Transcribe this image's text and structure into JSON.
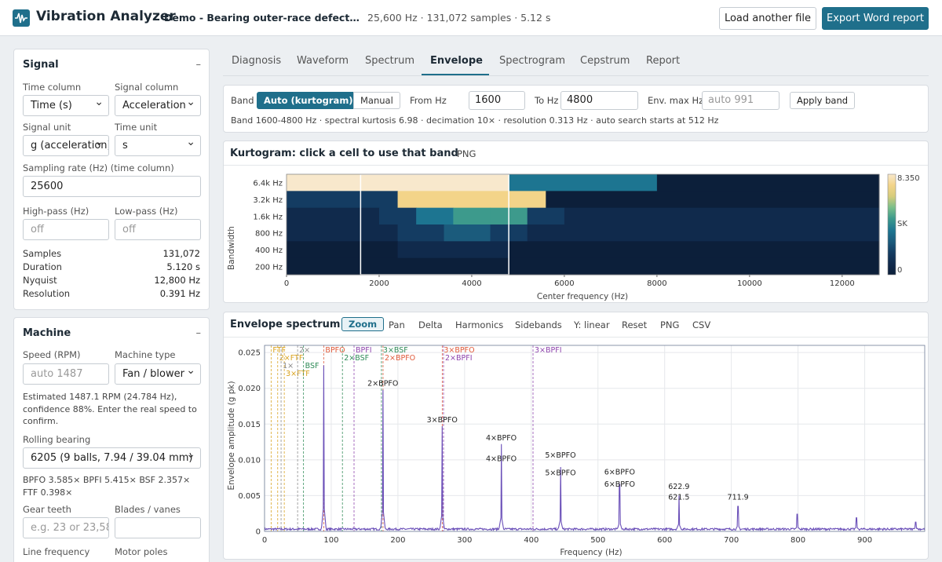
{
  "header": {
    "app_title": "Vibration Analyzer",
    "file_title": "Demo - Bearing outer-race defect (synthetic)",
    "file_meta": "25,600 Hz · 131,072 samples · 5.12 s",
    "load_button": "Load another file",
    "export_button": "Export Word report"
  },
  "signal": {
    "title": "Signal",
    "collapse": "–",
    "time_column_label": "Time column",
    "time_column_value": "Time (s)",
    "signal_column_label": "Signal column",
    "signal_column_value": "Acceleration",
    "signal_unit_label": "Signal unit",
    "signal_unit_value": "g (acceleration)",
    "time_unit_label": "Time unit",
    "time_unit_value": "s",
    "sampling_label": "Sampling rate (Hz) (time column)",
    "sampling_value": "25600",
    "highpass_label": "High-pass (Hz)",
    "highpass_placeholder": "off",
    "lowpass_label": "Low-pass (Hz)",
    "lowpass_placeholder": "off",
    "stats": [
      {
        "key": "Samples",
        "value": "131,072"
      },
      {
        "key": "Duration",
        "value": "5.120 s"
      },
      {
        "key": "Nyquist",
        "value": "12,800 Hz"
      },
      {
        "key": "Resolution",
        "value": "0.391 Hz"
      }
    ]
  },
  "machine": {
    "title": "Machine",
    "collapse": "–",
    "speed_label": "Speed (RPM)",
    "speed_placeholder": "auto 1487",
    "type_label": "Machine type",
    "type_value": "Fan / blower",
    "estimate_note": "Estimated 1487.1 RPM (24.784 Hz), confidence 88%. Enter the real speed to confirm.",
    "bearing_label": "Rolling bearing",
    "bearing_value": "6205 (9 balls, 7.94 / 39.04 mm)",
    "bearing_note": "BPFO 3.585× BPFI 5.415× BSF 2.357× FTF 0.398×",
    "gear_label": "Gear teeth",
    "gear_placeholder": "e.g. 23 or 23,58",
    "blades_label": "Blades / vanes",
    "line_label": "Line frequency",
    "poles_label": "Motor poles"
  },
  "tabs": [
    "Diagnosis",
    "Waveform",
    "Spectrum",
    "Envelope",
    "Spectrogram",
    "Cepstrum",
    "Report"
  ],
  "active_tab": "Envelope",
  "band": {
    "label": "Band",
    "auto": "Auto (kurtogram)",
    "manual": "Manual",
    "from_label": "From Hz",
    "from_value": "1600",
    "to_label": "To Hz",
    "to_value": "4800",
    "env_label": "Env. max Hz",
    "env_placeholder": "auto 991",
    "apply": "Apply band",
    "summary": "Band 1600-4800 Hz · spectral kurtosis 6.98 · decimation 10× · resolution 0.313 Hz · auto search starts at 512 Hz"
  },
  "kurtogram": {
    "title": "Kurtogram: click a cell to use that band",
    "png": "PNG",
    "ylabel": "Bandwidth",
    "xlabel": "Center frequency (Hz)",
    "rows": [
      "6.4k Hz",
      "3.2k Hz",
      "1.6k Hz",
      "800 Hz",
      "400 Hz",
      "200 Hz"
    ],
    "xticks": [
      "0",
      "2000",
      "4000",
      "6000",
      "8000",
      "10000",
      "12000"
    ],
    "colorbar_max": "8.350",
    "colorbar_mid": "SK",
    "colorbar_min": "0",
    "selected_band_hz": [
      1600,
      4800
    ]
  },
  "envelope": {
    "title": "Envelope spectrum",
    "tools": [
      "Zoom",
      "Pan",
      "Delta",
      "Harmonics",
      "Sidebands",
      "Y: linear",
      "Reset",
      "PNG",
      "CSV"
    ],
    "active_tool": "Zoom"
  },
  "chart_data": {
    "type": "line",
    "xlabel": "Frequency (Hz)",
    "ylabel": "Envelope amplitude (g pk)",
    "xlim": [
      0,
      990
    ],
    "ylim": [
      0,
      0.026
    ],
    "xticks": [
      "0",
      "100",
      "200",
      "300",
      "400",
      "500",
      "600",
      "700",
      "800",
      "900"
    ],
    "yticks": [
      "0",
      "0.005",
      "0.010",
      "0.015",
      "0.020",
      "0.025"
    ],
    "grid": true,
    "series": [
      {
        "name": "",
        "color": "#6a4fb8",
        "peaks": [
          {
            "x": 88.8,
            "y": 0.0232
          },
          {
            "x": 177.5,
            "y": 0.0198
          },
          {
            "x": 266.3,
            "y": 0.0147
          },
          {
            "x": 355.0,
            "y": 0.0122
          },
          {
            "x": 443.8,
            "y": 0.009
          },
          {
            "x": 532.5,
            "y": 0.0066
          },
          {
            "x": 621.3,
            "y": 0.005
          },
          {
            "x": 710.0,
            "y": 0.0035
          },
          {
            "x": 798.8,
            "y": 0.0024
          },
          {
            "x": 887.5,
            "y": 0.0019
          },
          {
            "x": 976.3,
            "y": 0.0013
          }
        ]
      }
    ],
    "markers": [
      {
        "label": "FTF",
        "x": 9.9,
        "color": "#d9a21c",
        "row": 0
      },
      {
        "label": "2×FTF",
        "x": 19.7,
        "color": "#d9a21c",
        "row": 1
      },
      {
        "label": "3×FTF",
        "x": 29.6,
        "color": "#d9a21c",
        "row": 3
      },
      {
        "label": "1×",
        "x": 24.8,
        "color": "#888888",
        "row": 2
      },
      {
        "label": "2×",
        "x": 49.6,
        "color": "#888888",
        "row": 0
      },
      {
        "label": "BSF",
        "x": 58.4,
        "color": "#2e8b57",
        "row": 2
      },
      {
        "label": "2×BSF",
        "x": 116.8,
        "color": "#2e8b57",
        "row": 1
      },
      {
        "label": "3×BSF",
        "x": 175.3,
        "color": "#2e8b57",
        "row": 0
      },
      {
        "label": "BPFO",
        "x": 88.8,
        "color": "#e05a3a",
        "row": 0
      },
      {
        "label": "2×BPFO",
        "x": 177.7,
        "color": "#e05a3a",
        "row": 1
      },
      {
        "label": "3×BPFO",
        "x": 266.5,
        "color": "#e05a3a",
        "row": 0
      },
      {
        "label": "BPFI",
        "x": 134.2,
        "color": "#8e44ad",
        "row": 0
      },
      {
        "label": "2×BPFI",
        "x": 268.4,
        "color": "#8e44ad",
        "row": 1
      },
      {
        "label": "3×BPFI",
        "x": 402.6,
        "color": "#8e44ad",
        "row": 0
      }
    ],
    "annotations": [
      {
        "text": "2×BPFO",
        "x": 177.5,
        "y": 0.0199
      },
      {
        "text": "3×BPFO",
        "x": 266.3,
        "y": 0.0148
      },
      {
        "text": "4×BPFO",
        "x": 355.0,
        "y": 0.0123
      },
      {
        "text": "4×BPFO",
        "x": 355.0,
        "y": 0.0094
      },
      {
        "text": "5×BPFO",
        "x": 443.8,
        "y": 0.0099
      },
      {
        "text": "5×BPFO",
        "x": 443.8,
        "y": 0.0074
      },
      {
        "text": "6×BPFO",
        "x": 532.5,
        "y": 0.0075
      },
      {
        "text": "6×BPFO",
        "x": 532.5,
        "y": 0.0058
      },
      {
        "text": "622.9",
        "x": 621.3,
        "y": 0.0055
      },
      {
        "text": "621.5",
        "x": 621.3,
        "y": 0.004
      },
      {
        "text": "711.9",
        "x": 710.0,
        "y": 0.004
      }
    ]
  }
}
